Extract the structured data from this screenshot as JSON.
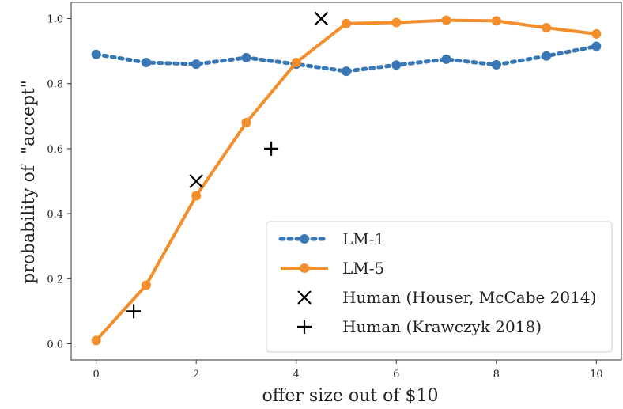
{
  "chart_data": {
    "type": "line",
    "title": "",
    "xlabel": "offer size out of $10",
    "ylabel": "probability of  \"accept\"",
    "xlim": [
      -0.5,
      10.5
    ],
    "ylim": [
      -0.05,
      1.05
    ],
    "xticks": [
      "0",
      "2",
      "4",
      "6",
      "8",
      "10"
    ],
    "yticks": [
      "0.0",
      "0.2",
      "0.4",
      "0.6",
      "0.8",
      "1.0"
    ],
    "grid": false,
    "legend_position": "lower-right",
    "series": [
      {
        "name": "LM-1",
        "style": "dotted-line-with-dots",
        "color": "#3a78b5",
        "x": [
          0,
          1,
          2,
          3,
          4,
          5,
          6,
          7,
          8,
          9,
          10
        ],
        "y": [
          0.89,
          0.865,
          0.86,
          0.88,
          0.86,
          0.838,
          0.857,
          0.875,
          0.858,
          0.885,
          0.915
        ]
      },
      {
        "name": "LM-5",
        "style": "solid-line-with-dots",
        "color": "#f28e2b",
        "x": [
          0,
          1,
          2,
          3,
          4,
          5,
          6,
          7,
          8,
          9,
          10
        ],
        "y": [
          0.01,
          0.18,
          0.455,
          0.68,
          0.865,
          0.985,
          0.988,
          0.995,
          0.993,
          0.972,
          0.953
        ]
      },
      {
        "name": "Human (Houser, McCabe 2014)",
        "style": "x-marker",
        "color": "#000000",
        "x": [
          2,
          4.5
        ],
        "y": [
          0.5,
          1.0
        ]
      },
      {
        "name": "Human (Krawczyk 2018)",
        "style": "plus-marker",
        "color": "#000000",
        "x": [
          0.75,
          3.5
        ],
        "y": [
          0.1,
          0.6
        ]
      }
    ]
  }
}
